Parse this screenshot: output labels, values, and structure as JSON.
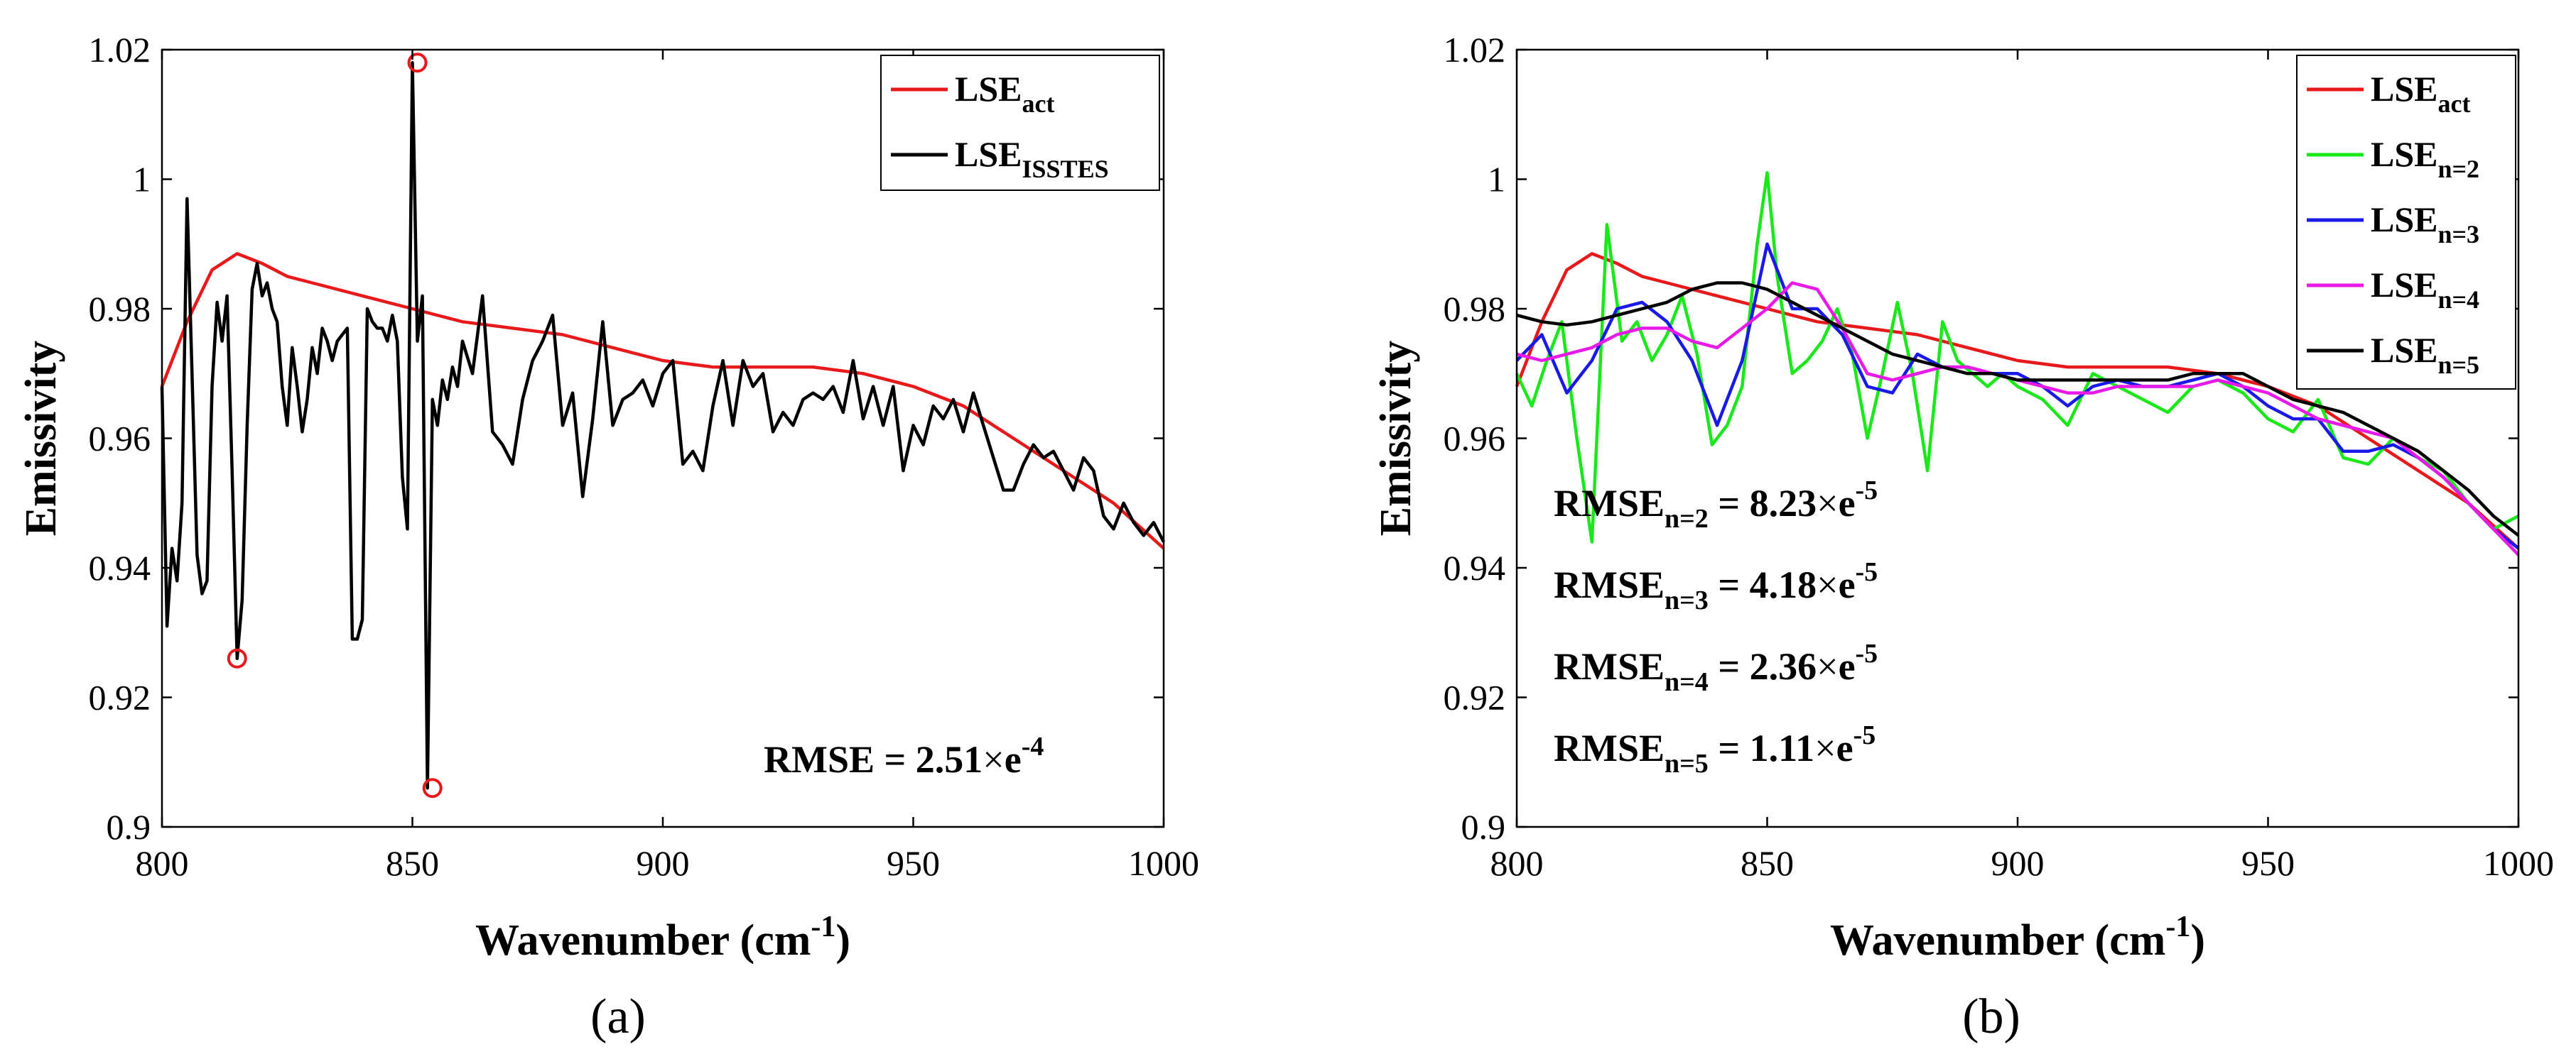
{
  "chart_data": [
    {
      "type": "line",
      "panel_label": "(a)",
      "xlabel": "Wavenumber (cm",
      "xlabel_sup": "-1",
      "xlabel_end": ")",
      "ylabel": "Emissivity",
      "xlim": [
        800,
        1000
      ],
      "ylim": [
        0.9,
        1.02
      ],
      "xticks": [
        "800",
        "850",
        "900",
        "950",
        "1000"
      ],
      "yticks": [
        "0.9",
        "0.92",
        "0.94",
        "0.96",
        "0.98",
        "1",
        "1.02"
      ],
      "legend_position": "top-right",
      "series": [
        {
          "name": "LSE",
          "sub": "act",
          "color": "#e8191b",
          "x": [
            800,
            805,
            810,
            815,
            820,
            825,
            830,
            840,
            850,
            860,
            870,
            880,
            890,
            900,
            910,
            920,
            930,
            940,
            950,
            960,
            970,
            980,
            990,
            1000
          ],
          "y": [
            0.968,
            0.978,
            0.986,
            0.9885,
            0.987,
            0.985,
            0.984,
            0.982,
            0.98,
            0.978,
            0.977,
            0.976,
            0.974,
            0.972,
            0.971,
            0.971,
            0.971,
            0.97,
            0.968,
            0.965,
            0.96,
            0.955,
            0.95,
            0.943
          ]
        },
        {
          "name": "LSE",
          "sub": "ISSTES",
          "color": "#000000",
          "x": [
            800,
            801,
            802,
            803,
            804,
            805,
            806,
            807,
            808,
            809,
            810,
            811,
            812,
            813,
            814,
            815,
            816,
            817,
            818,
            819,
            820,
            821,
            822,
            823,
            824,
            825,
            826,
            827,
            828,
            829,
            830,
            831,
            832,
            833,
            834,
            835,
            836,
            837,
            838,
            839,
            840,
            841,
            842,
            843,
            844,
            845,
            846,
            847,
            848,
            849,
            850,
            851,
            852,
            853,
            854,
            855,
            856,
            857,
            858,
            859,
            860,
            862,
            864,
            866,
            868,
            870,
            872,
            874,
            876,
            878,
            880,
            882,
            884,
            886,
            888,
            890,
            892,
            894,
            896,
            898,
            900,
            902,
            904,
            906,
            908,
            910,
            912,
            914,
            916,
            918,
            920,
            922,
            924,
            926,
            928,
            930,
            932,
            934,
            936,
            938,
            940,
            942,
            944,
            946,
            948,
            950,
            952,
            954,
            956,
            958,
            960,
            962,
            964,
            966,
            968,
            970,
            972,
            974,
            976,
            978,
            980,
            982,
            984,
            986,
            988,
            990,
            992,
            994,
            996,
            998,
            1000
          ],
          "y": [
            0.968,
            0.931,
            0.943,
            0.938,
            0.95,
            0.997,
            0.97,
            0.942,
            0.936,
            0.938,
            0.968,
            0.981,
            0.975,
            0.982,
            0.955,
            0.926,
            0.935,
            0.962,
            0.983,
            0.987,
            0.982,
            0.984,
            0.98,
            0.978,
            0.968,
            0.962,
            0.974,
            0.968,
            0.961,
            0.966,
            0.974,
            0.97,
            0.977,
            0.975,
            0.972,
            0.975,
            0.976,
            0.977,
            0.929,
            0.929,
            0.932,
            0.98,
            0.978,
            0.977,
            0.977,
            0.975,
            0.979,
            0.975,
            0.954,
            0.946,
            1.018,
            0.975,
            0.982,
            0.906,
            0.966,
            0.962,
            0.969,
            0.966,
            0.971,
            0.968,
            0.975,
            0.97,
            0.982,
            0.961,
            0.959,
            0.956,
            0.966,
            0.972,
            0.975,
            0.979,
            0.962,
            0.967,
            0.951,
            0.963,
            0.978,
            0.962,
            0.966,
            0.967,
            0.969,
            0.965,
            0.97,
            0.972,
            0.956,
            0.958,
            0.955,
            0.965,
            0.972,
            0.962,
            0.972,
            0.968,
            0.97,
            0.961,
            0.964,
            0.962,
            0.966,
            0.967,
            0.966,
            0.968,
            0.964,
            0.972,
            0.963,
            0.968,
            0.962,
            0.968,
            0.955,
            0.962,
            0.959,
            0.965,
            0.963,
            0.966,
            0.961,
            0.967,
            0.962,
            0.957,
            0.952,
            0.952,
            0.956,
            0.959,
            0.957,
            0.958,
            0.955,
            0.952,
            0.957,
            0.955,
            0.948,
            0.946,
            0.95,
            0.947,
            0.945,
            0.947,
            0.944
          ]
        }
      ],
      "markers": [
        {
          "x": 815,
          "y": 0.926,
          "color": "#e8191b"
        },
        {
          "x": 851,
          "y": 1.018,
          "color": "#e8191b"
        },
        {
          "x": 854,
          "y": 0.906,
          "color": "#e8191b"
        }
      ],
      "annotations": [
        {
          "text": "RMSE = 2.51",
          "times": "×",
          "base": "e",
          "exp": "-4"
        }
      ]
    },
    {
      "type": "line",
      "panel_label": "(b)",
      "xlabel": "Wavenumber (cm",
      "xlabel_sup": "-1",
      "xlabel_end": ")",
      "ylabel": "Emissivity",
      "xlim": [
        800,
        1000
      ],
      "ylim": [
        0.9,
        1.02
      ],
      "xticks": [
        "800",
        "850",
        "900",
        "950",
        "1000"
      ],
      "yticks": [
        "0.9",
        "0.92",
        "0.94",
        "0.96",
        "0.98",
        "1",
        "1.02"
      ],
      "legend_position": "top-right",
      "series": [
        {
          "name": "LSE",
          "sub": "act",
          "color": "#e8191b",
          "x": [
            800,
            805,
            810,
            815,
            820,
            825,
            830,
            840,
            850,
            860,
            870,
            880,
            890,
            900,
            910,
            920,
            930,
            940,
            950,
            960,
            970,
            980,
            990,
            1000
          ],
          "y": [
            0.968,
            0.978,
            0.986,
            0.9885,
            0.987,
            0.985,
            0.984,
            0.982,
            0.98,
            0.978,
            0.977,
            0.976,
            0.974,
            0.972,
            0.971,
            0.971,
            0.971,
            0.97,
            0.968,
            0.965,
            0.96,
            0.955,
            0.95,
            0.943
          ]
        },
        {
          "name": "LSE",
          "sub": "n=2",
          "color": "#1ae81a",
          "x": [
            800,
            803,
            806,
            809,
            812,
            815,
            818,
            821,
            824,
            827,
            830,
            833,
            836,
            839,
            842,
            845,
            848,
            850,
            852,
            855,
            858,
            861,
            864,
            867,
            870,
            873,
            876,
            879,
            882,
            885,
            888,
            891,
            894,
            897,
            900,
            905,
            910,
            915,
            920,
            925,
            930,
            935,
            940,
            945,
            950,
            955,
            960,
            965,
            970,
            975,
            980,
            985,
            990,
            995,
            1000
          ],
          "y": [
            0.97,
            0.965,
            0.972,
            0.978,
            0.96,
            0.944,
            0.993,
            0.975,
            0.978,
            0.972,
            0.976,
            0.982,
            0.973,
            0.959,
            0.962,
            0.968,
            0.99,
            1.001,
            0.985,
            0.97,
            0.972,
            0.975,
            0.98,
            0.973,
            0.96,
            0.97,
            0.981,
            0.97,
            0.955,
            0.978,
            0.972,
            0.97,
            0.968,
            0.97,
            0.968,
            0.966,
            0.962,
            0.97,
            0.968,
            0.966,
            0.964,
            0.968,
            0.969,
            0.967,
            0.963,
            0.961,
            0.966,
            0.957,
            0.956,
            0.96,
            0.957,
            0.955,
            0.95,
            0.946,
            0.948
          ]
        },
        {
          "name": "LSE",
          "sub": "n=3",
          "color": "#1a1ae8",
          "x": [
            800,
            805,
            810,
            815,
            820,
            825,
            830,
            835,
            840,
            845,
            850,
            855,
            860,
            865,
            870,
            875,
            880,
            885,
            890,
            895,
            900,
            905,
            910,
            915,
            920,
            925,
            930,
            935,
            940,
            945,
            950,
            955,
            960,
            965,
            970,
            975,
            980,
            985,
            990,
            995,
            1000
          ],
          "y": [
            0.972,
            0.976,
            0.967,
            0.972,
            0.98,
            0.981,
            0.978,
            0.972,
            0.962,
            0.972,
            0.99,
            0.98,
            0.98,
            0.976,
            0.968,
            0.967,
            0.973,
            0.971,
            0.971,
            0.97,
            0.97,
            0.968,
            0.965,
            0.968,
            0.969,
            0.968,
            0.968,
            0.969,
            0.97,
            0.968,
            0.965,
            0.963,
            0.963,
            0.958,
            0.958,
            0.959,
            0.957,
            0.954,
            0.95,
            0.946,
            0.943
          ]
        },
        {
          "name": "LSE",
          "sub": "n=4",
          "color": "#e81ae8",
          "x": [
            800,
            805,
            810,
            815,
            820,
            825,
            830,
            835,
            840,
            845,
            850,
            855,
            860,
            865,
            870,
            875,
            880,
            885,
            890,
            895,
            900,
            905,
            910,
            915,
            920,
            925,
            930,
            935,
            940,
            945,
            950,
            955,
            960,
            965,
            970,
            975,
            980,
            985,
            990,
            995,
            1000
          ],
          "y": [
            0.973,
            0.972,
            0.973,
            0.974,
            0.976,
            0.977,
            0.977,
            0.975,
            0.974,
            0.977,
            0.98,
            0.984,
            0.983,
            0.977,
            0.97,
            0.969,
            0.97,
            0.971,
            0.971,
            0.97,
            0.969,
            0.968,
            0.967,
            0.967,
            0.968,
            0.968,
            0.968,
            0.968,
            0.969,
            0.968,
            0.967,
            0.965,
            0.963,
            0.962,
            0.961,
            0.96,
            0.957,
            0.954,
            0.95,
            0.946,
            0.942
          ]
        },
        {
          "name": "LSE",
          "sub": "n=5",
          "color": "#000000",
          "x": [
            800,
            805,
            810,
            815,
            820,
            825,
            830,
            835,
            840,
            845,
            850,
            855,
            860,
            865,
            870,
            875,
            880,
            885,
            890,
            895,
            900,
            905,
            910,
            915,
            920,
            925,
            930,
            935,
            940,
            945,
            950,
            955,
            960,
            965,
            970,
            975,
            980,
            985,
            990,
            995,
            1000
          ],
          "y": [
            0.979,
            0.978,
            0.9775,
            0.978,
            0.979,
            0.98,
            0.981,
            0.983,
            0.984,
            0.984,
            0.983,
            0.981,
            0.979,
            0.977,
            0.975,
            0.973,
            0.972,
            0.971,
            0.97,
            0.97,
            0.969,
            0.969,
            0.969,
            0.969,
            0.969,
            0.969,
            0.969,
            0.97,
            0.97,
            0.97,
            0.968,
            0.966,
            0.965,
            0.964,
            0.962,
            0.96,
            0.958,
            0.955,
            0.952,
            0.948,
            0.945
          ]
        }
      ],
      "markers": [],
      "annotations": [
        {
          "text": "RMSE",
          "sub": "n=2",
          "rest": " = 8.23",
          "times": "×",
          "base": "e",
          "exp": "-5"
        },
        {
          "text": "RMSE",
          "sub": "n=3",
          "rest": " = 4.18",
          "times": "×",
          "base": "e",
          "exp": "-5"
        },
        {
          "text": "RMSE",
          "sub": "n=4",
          "rest": " = 2.36",
          "times": "×",
          "base": "e",
          "exp": "-5"
        },
        {
          "text": "RMSE",
          "sub": "n=5",
          "rest": " = 1.11",
          "times": "×",
          "base": "e",
          "exp": "-5"
        }
      ]
    }
  ]
}
